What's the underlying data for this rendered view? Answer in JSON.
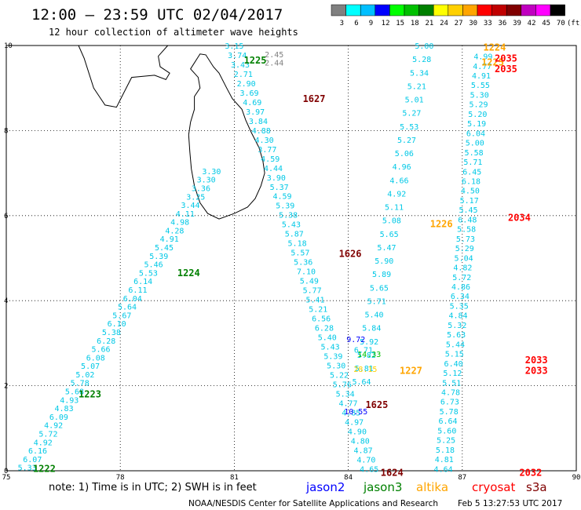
{
  "header": {
    "title": "12:00 – 23:59 UTC 02/04/2017",
    "subtitle": "12 hour collection of altimeter wave heights"
  },
  "colorbar": {
    "unit": "(ft)",
    "bins": [
      {
        "label": "3",
        "color": "#808080"
      },
      {
        "label": "6",
        "color": "#00ffff"
      },
      {
        "label": "9",
        "color": "#00bfff"
      },
      {
        "label": "12",
        "color": "#0000ff"
      },
      {
        "label": "15",
        "color": "#00ff00"
      },
      {
        "label": "18",
        "color": "#00c000"
      },
      {
        "label": "21",
        "color": "#008000"
      },
      {
        "label": "24",
        "color": "#ffff00"
      },
      {
        "label": "27",
        "color": "#ffd000"
      },
      {
        "label": "30",
        "color": "#ffa500"
      },
      {
        "label": "33",
        "color": "#ff0000"
      },
      {
        "label": "36",
        "color": "#c00000"
      },
      {
        "label": "39",
        "color": "#800000"
      },
      {
        "label": "42",
        "color": "#c000c0"
      },
      {
        "label": "45",
        "color": "#ff00ff"
      },
      {
        "label": "70",
        "color": "#000000"
      }
    ]
  },
  "footer": {
    "note": "note: 1) Time is in UTC; 2) SWH is in feet",
    "legend": [
      {
        "name": "jason2",
        "color": "#0000ff"
      },
      {
        "name": "jason3",
        "color": "#008000"
      },
      {
        "name": "altika",
        "color": "#ffa500"
      },
      {
        "name": "cryosat",
        "color": "#ff0000"
      },
      {
        "name": "s3a",
        "color": "#800000"
      }
    ],
    "credit": "NOAA/NESDIS Center for Satellite Applications and Research",
    "timestamp": "Feb  5 13:27:53 UTC 2017"
  },
  "chart_data": {
    "type": "scatter",
    "xlim": [
      75,
      90
    ],
    "ylim": [
      0,
      10
    ],
    "x_ticks": [
      "75",
      "78",
      "81",
      "84",
      "87",
      "90"
    ],
    "y_ticks": [
      "0",
      "2",
      "4",
      "6",
      "8",
      "10"
    ],
    "grid": "dotted",
    "colors": {
      "swh": "#00c8e6",
      "land": "#000000",
      "grid": "#000000"
    },
    "tracks": [
      {
        "name": "track A",
        "start": [
          75.55,
          0.08
        ],
        "end": [
          80.4,
          7.05
        ],
        "values": [
          "5.33",
          "6.07",
          "6.16",
          "4.92",
          "5.72",
          "4.92",
          "6.09",
          "4.83",
          "4.93",
          "5.68",
          "5.78",
          "5.02",
          "5.07",
          "6.08",
          "5.66",
          "6.28",
          "5.38",
          "6.10",
          "5.67",
          "5.64",
          "6.04",
          "6.11",
          "6.14",
          "5.53",
          "5.46",
          "5.39",
          "5.45",
          "4.91",
          "4.28",
          "4.98",
          "4.11",
          "3.44",
          "3.25",
          "3.36",
          "3.30",
          "3.30"
        ]
      },
      {
        "name": "track B",
        "start": [
          81.0,
          10.0
        ],
        "end": [
          84.55,
          0.05
        ],
        "values": [
          "3.15",
          "3.74",
          "3.43",
          "2.71",
          "2.90",
          "3.69",
          "4.69",
          "3.97",
          "3.84",
          "4.88",
          "4.30",
          "3.77",
          "4.59",
          "4.44",
          "3.90",
          "5.37",
          "4.59",
          "5.39",
          "5.38",
          "5.43",
          "5.87",
          "5.18",
          "5.57",
          "5.36",
          "7.10",
          "5.49",
          "5.77",
          "5.41",
          "5.21",
          "6.56",
          "6.28",
          "5.40",
          "5.43",
          "5.39",
          "5.30",
          "5.22",
          "5.76",
          "5.34",
          "4.77",
          "4.85",
          "4.97",
          "4.90",
          "4.80",
          "4.87",
          "4.70",
          "4.65"
        ]
      },
      {
        "name": "track C",
        "start": [
          84.35,
          2.1
        ],
        "end": [
          86.0,
          10.0
        ],
        "values": [
          "5.64",
          "5.81",
          "5.82",
          "5.92",
          "5.84",
          "5.40",
          "5.71",
          "5.65",
          "5.89",
          "5.90",
          "5.47",
          "5.65",
          "5.08",
          "5.11",
          "4.92",
          "4.66",
          "4.96",
          "5.06",
          "5.27",
          "5.53",
          "5.27",
          "5.01",
          "5.21",
          "5.34",
          "5.28",
          "5.00"
        ]
      },
      {
        "name": "track D",
        "start": [
          87.55,
          9.75
        ],
        "end": [
          86.5,
          0.05
        ],
        "values": [
          "4.99",
          "4.77",
          "4.91",
          "5.55",
          "5.30",
          "5.29",
          "5.20",
          "5.19",
          "6.04",
          "5.00",
          "5.58",
          "5.71",
          "6.45",
          "6.18",
          "4.50",
          "5.17",
          "5.45",
          "6.48",
          "5.58",
          "5.73",
          "5.29",
          "5.04",
          "4.82",
          "5.72",
          "4.86",
          "6.34",
          "5.35",
          "4.84",
          "5.32",
          "5.63",
          "5.44",
          "5.15",
          "6.40",
          "5.12",
          "5.51",
          "4.78",
          "6.73",
          "5.78",
          "6.64",
          "5.60",
          "5.25",
          "5.18",
          "4.81",
          "4.64"
        ]
      }
    ],
    "extra_points": [
      {
        "x": 82.05,
        "y": 9.8,
        "value": "2.45",
        "color": "#808080"
      },
      {
        "x": 82.05,
        "y": 9.6,
        "value": "2.44",
        "color": "#808080"
      },
      {
        "x": 84.2,
        "y": 3.1,
        "value": "9.72",
        "color": "#0000ff"
      },
      {
        "x": 84.2,
        "y": 1.4,
        "value": "10.55",
        "color": "#0000ff"
      },
      {
        "x": 84.4,
        "y": 2.85,
        "value": "6.71",
        "color": "#00c8e6"
      },
      {
        "x": 84.55,
        "y": 2.75,
        "value": "14.33",
        "color": "#00c000"
      },
      {
        "x": 84.45,
        "y": 2.4,
        "value": "28.15",
        "color": "#ffd000"
      }
    ],
    "time_labels": [
      {
        "x": 76.0,
        "y": 0.05,
        "label": "1222",
        "sat": "jason3"
      },
      {
        "x": 77.2,
        "y": 1.8,
        "label": "1223",
        "sat": "jason3"
      },
      {
        "x": 79.8,
        "y": 4.65,
        "label": "1224",
        "sat": "jason3"
      },
      {
        "x": 81.55,
        "y": 9.65,
        "label": "1225",
        "sat": "jason3"
      },
      {
        "x": 83.1,
        "y": 8.75,
        "label": "1627",
        "sat": "s3a"
      },
      {
        "x": 84.05,
        "y": 5.1,
        "label": "1626",
        "sat": "s3a"
      },
      {
        "x": 84.75,
        "y": 1.55,
        "label": "1625",
        "sat": "s3a"
      },
      {
        "x": 85.15,
        "y": -0.05,
        "label": "1624",
        "sat": "s3a"
      },
      {
        "x": 85.65,
        "y": 2.35,
        "label": "1227",
        "sat": "altika"
      },
      {
        "x": 86.45,
        "y": 5.8,
        "label": "1226",
        "sat": "altika"
      },
      {
        "x": 87.8,
        "y": 9.6,
        "label": "1225",
        "sat": "altika"
      },
      {
        "x": 87.85,
        "y": 9.95,
        "label": "1224",
        "sat": "altika"
      },
      {
        "x": 88.15,
        "y": 9.7,
        "label": "2035",
        "sat": "cryosat"
      },
      {
        "x": 88.15,
        "y": 9.45,
        "label": "2035",
        "sat": "cryosat"
      },
      {
        "x": 88.5,
        "y": 5.95,
        "label": "2034",
        "sat": "cryosat"
      },
      {
        "x": 88.95,
        "y": 2.6,
        "label": "2033",
        "sat": "cryosat"
      },
      {
        "x": 88.95,
        "y": 2.35,
        "label": "2033",
        "sat": "cryosat"
      },
      {
        "x": 88.8,
        "y": -0.05,
        "label": "2032",
        "sat": "cryosat"
      }
    ],
    "coastline": [
      [
        79.85,
        9.45
      ],
      [
        80.1,
        9.8
      ],
      [
        80.25,
        9.78
      ],
      [
        80.45,
        9.5
      ],
      [
        80.6,
        9.35
      ],
      [
        80.8,
        9.0
      ],
      [
        80.95,
        8.75
      ],
      [
        81.2,
        8.5
      ],
      [
        81.3,
        8.25
      ],
      [
        81.45,
        7.95
      ],
      [
        81.65,
        7.6
      ],
      [
        81.75,
        7.3
      ],
      [
        81.8,
        7.0
      ],
      [
        81.7,
        6.7
      ],
      [
        81.55,
        6.4
      ],
      [
        81.35,
        6.2
      ],
      [
        81.0,
        6.05
      ],
      [
        80.6,
        5.92
      ],
      [
        80.3,
        6.05
      ],
      [
        80.1,
        6.3
      ],
      [
        79.95,
        6.7
      ],
      [
        79.87,
        7.1
      ],
      [
        79.83,
        7.5
      ],
      [
        79.8,
        7.9
      ],
      [
        79.85,
        8.2
      ],
      [
        79.95,
        8.5
      ],
      [
        79.95,
        8.8
      ],
      [
        80.1,
        9.0
      ],
      [
        80.05,
        9.25
      ]
    ],
    "india_coast": [
      [
        76.9,
        10.0
      ],
      [
        77.05,
        9.7
      ],
      [
        77.3,
        9.0
      ],
      [
        77.6,
        8.6
      ],
      [
        77.9,
        8.55
      ],
      [
        78.1,
        8.9
      ],
      [
        78.3,
        9.25
      ],
      [
        78.9,
        9.3
      ],
      [
        79.2,
        9.2
      ],
      [
        79.3,
        9.35
      ],
      [
        79.05,
        9.5
      ],
      [
        79.0,
        9.75
      ],
      [
        79.25,
        10.0
      ]
    ]
  }
}
